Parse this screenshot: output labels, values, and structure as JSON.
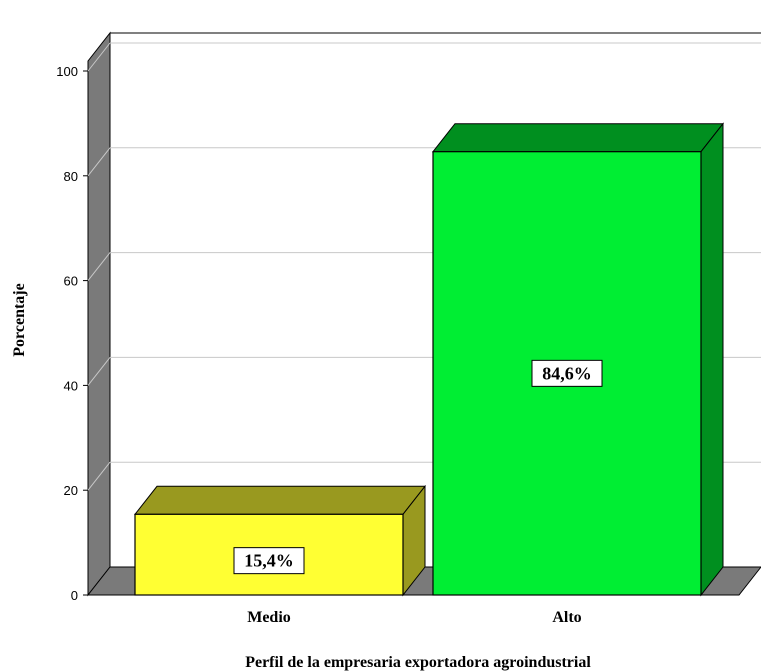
{
  "chart_data": {
    "type": "bar",
    "title": "",
    "xlabel": "Perfil de la empresaria exportadora agroindustrial",
    "ylabel": "Porcentaje",
    "categories": [
      "Medio",
      "Alto"
    ],
    "values": [
      15.4,
      84.6
    ],
    "data_labels": [
      "15,4%",
      "84,6%"
    ],
    "colors": [
      "#ffff33",
      "#00ee33"
    ],
    "ylim": [
      0,
      100
    ],
    "yticks": [
      0,
      20,
      40,
      60,
      80,
      100
    ],
    "grid": true,
    "legend": "none",
    "style": "3d"
  }
}
